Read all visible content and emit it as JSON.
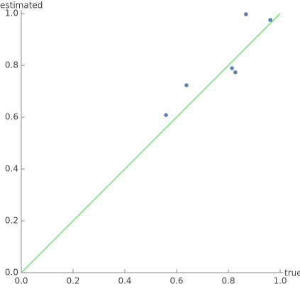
{
  "chart_data": {
    "type": "scatter",
    "x_label": "true",
    "y_label": "estimated",
    "series": [
      {
        "color": "#5e81b5",
        "x": [
          0.559,
          0.638,
          0.814,
          0.827,
          0.868,
          0.962
        ],
        "values": [
          0.608,
          0.723,
          0.789,
          0.773,
          0.997,
          0.975
        ]
      }
    ],
    "reference_line": {
      "color": "#00ff00",
      "x": [
        0,
        1
      ],
      "values": [
        0,
        1
      ]
    },
    "xlim": [
      0,
      1
    ],
    "ylim": [
      0,
      1
    ],
    "xticks": [
      {
        "value": 0,
        "label": "0.0"
      },
      0.2,
      0.4,
      0.6,
      0.8,
      {
        "value": 1,
        "label": "1.0"
      }
    ],
    "yticks": [
      {
        "value": 0,
        "label": "0.0"
      },
      0.2,
      0.4,
      0.6,
      0.8,
      {
        "value": 1,
        "label": "1.0"
      }
    ],
    "grid": false
  }
}
